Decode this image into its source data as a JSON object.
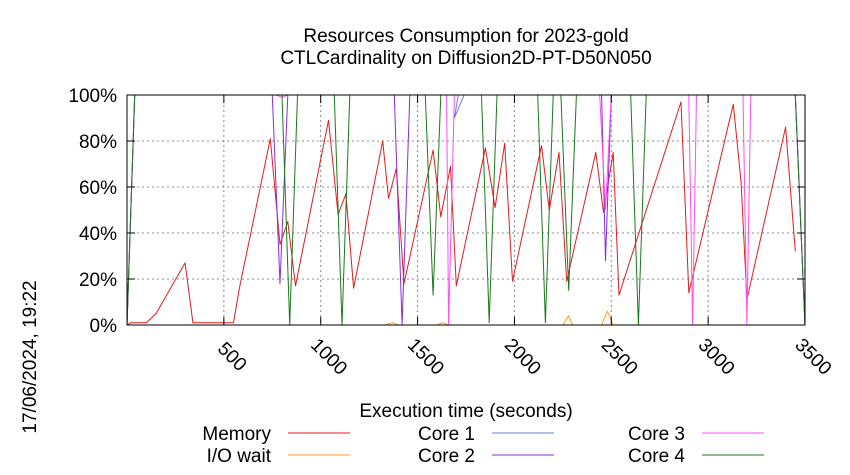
{
  "chart_data": {
    "type": "line",
    "title": "Resources Consumption for 2023-gold",
    "subtitle": "CTLCardinality on Diffusion2D-PT-D50N050",
    "xlabel": "Execution time (seconds)",
    "ylabel": "",
    "timestamp": "17/06/2024, 19:22",
    "xlim": [
      0,
      3500
    ],
    "ylim": [
      0,
      100
    ],
    "x_ticks": [
      500,
      1000,
      1500,
      2000,
      2500,
      3000,
      3500
    ],
    "x_tick_labels": [
      "500",
      "1000",
      "1500",
      "2000",
      "2500",
      "3000",
      "3500"
    ],
    "y_ticks": [
      0,
      20,
      40,
      60,
      80,
      100
    ],
    "y_tick_labels": [
      "0%",
      "20%",
      "40%",
      "60%",
      "80%",
      "100%"
    ],
    "grid": true,
    "legend_position": "bottom",
    "series": [
      {
        "name": "Memory",
        "color": "#e41a1c",
        "points": [
          [
            0,
            0
          ],
          [
            20,
            1
          ],
          [
            100,
            1
          ],
          [
            150,
            5
          ],
          [
            300,
            27
          ],
          [
            340,
            1
          ],
          [
            550,
            1
          ],
          [
            580,
            16
          ],
          [
            740,
            81
          ],
          [
            790,
            35
          ],
          [
            830,
            45
          ],
          [
            870,
            17
          ],
          [
            1040,
            89
          ],
          [
            1090,
            48
          ],
          [
            1130,
            57
          ],
          [
            1170,
            16
          ],
          [
            1320,
            80
          ],
          [
            1350,
            55
          ],
          [
            1390,
            68
          ],
          [
            1430,
            18
          ],
          [
            1580,
            76
          ],
          [
            1620,
            47
          ],
          [
            1670,
            69
          ],
          [
            1700,
            17
          ],
          [
            1850,
            77
          ],
          [
            1900,
            51
          ],
          [
            1950,
            79
          ],
          [
            1990,
            19
          ],
          [
            2140,
            78
          ],
          [
            2180,
            50
          ],
          [
            2230,
            75
          ],
          [
            2270,
            19
          ],
          [
            2420,
            75
          ],
          [
            2460,
            49
          ],
          [
            2510,
            75
          ],
          [
            2540,
            13
          ],
          [
            2860,
            97
          ],
          [
            2900,
            14
          ],
          [
            3130,
            96
          ],
          [
            3170,
            62
          ],
          [
            3200,
            11
          ],
          [
            3400,
            86
          ],
          [
            3450,
            32
          ]
        ]
      },
      {
        "name": "I/O wait",
        "color": "#ff9f1c",
        "points": [
          [
            0,
            0
          ],
          [
            1330,
            0
          ],
          [
            1370,
            1
          ],
          [
            1400,
            0
          ],
          [
            1600,
            0
          ],
          [
            1630,
            1
          ],
          [
            1660,
            0
          ],
          [
            2250,
            0
          ],
          [
            2280,
            4
          ],
          [
            2300,
            0
          ],
          [
            2450,
            0
          ],
          [
            2480,
            6
          ],
          [
            2510,
            0
          ],
          [
            3500,
            0
          ]
        ]
      },
      {
        "name": "Core 1",
        "color": "#6f82d8",
        "points": [
          [
            0,
            0
          ],
          [
            40,
            100
          ],
          [
            1710,
            100
          ],
          [
            1690,
            90
          ],
          [
            1740,
            100
          ],
          [
            3450,
            100
          ],
          [
            3500,
            0
          ]
        ]
      },
      {
        "name": "Core 2",
        "color": "#8a2be2",
        "points": [
          [
            0,
            0
          ],
          [
            40,
            100
          ],
          [
            750,
            100
          ],
          [
            790,
            18
          ],
          [
            830,
            100
          ],
          [
            1380,
            100
          ],
          [
            1420,
            0
          ],
          [
            1460,
            100
          ],
          [
            2450,
            100
          ],
          [
            2470,
            28
          ],
          [
            2500,
            100
          ],
          [
            3450,
            100
          ],
          [
            3500,
            0
          ]
        ]
      },
      {
        "name": "Core 3",
        "color": "#ff4cff",
        "points": [
          [
            0,
            0
          ],
          [
            40,
            100
          ],
          [
            750,
            100
          ],
          [
            770,
            100
          ],
          [
            800,
            99
          ],
          [
            830,
            100
          ],
          [
            1650,
            100
          ],
          [
            1660,
            0
          ],
          [
            1690,
            100
          ],
          [
            2440,
            100
          ],
          [
            2470,
            50
          ],
          [
            2500,
            100
          ],
          [
            2900,
            100
          ],
          [
            2920,
            0
          ],
          [
            2940,
            100
          ],
          [
            3180,
            100
          ],
          [
            3200,
            0
          ],
          [
            3220,
            100
          ],
          [
            3450,
            100
          ],
          [
            3500,
            0
          ]
        ]
      },
      {
        "name": "Core 4",
        "color": "#1a7a1a",
        "points": [
          [
            0,
            0
          ],
          [
            40,
            100
          ],
          [
            800,
            100
          ],
          [
            840,
            0
          ],
          [
            880,
            100
          ],
          [
            1070,
            100
          ],
          [
            1110,
            0
          ],
          [
            1150,
            100
          ],
          [
            1540,
            100
          ],
          [
            1580,
            13
          ],
          [
            1620,
            100
          ],
          [
            1830,
            100
          ],
          [
            1870,
            1
          ],
          [
            1910,
            100
          ],
          [
            2120,
            100
          ],
          [
            2160,
            1
          ],
          [
            2200,
            100
          ],
          [
            2240,
            100
          ],
          [
            2280,
            15
          ],
          [
            2320,
            100
          ],
          [
            2600,
            100
          ],
          [
            2640,
            0
          ],
          [
            2680,
            100
          ],
          [
            3450,
            100
          ],
          [
            3500,
            0
          ]
        ]
      }
    ]
  }
}
